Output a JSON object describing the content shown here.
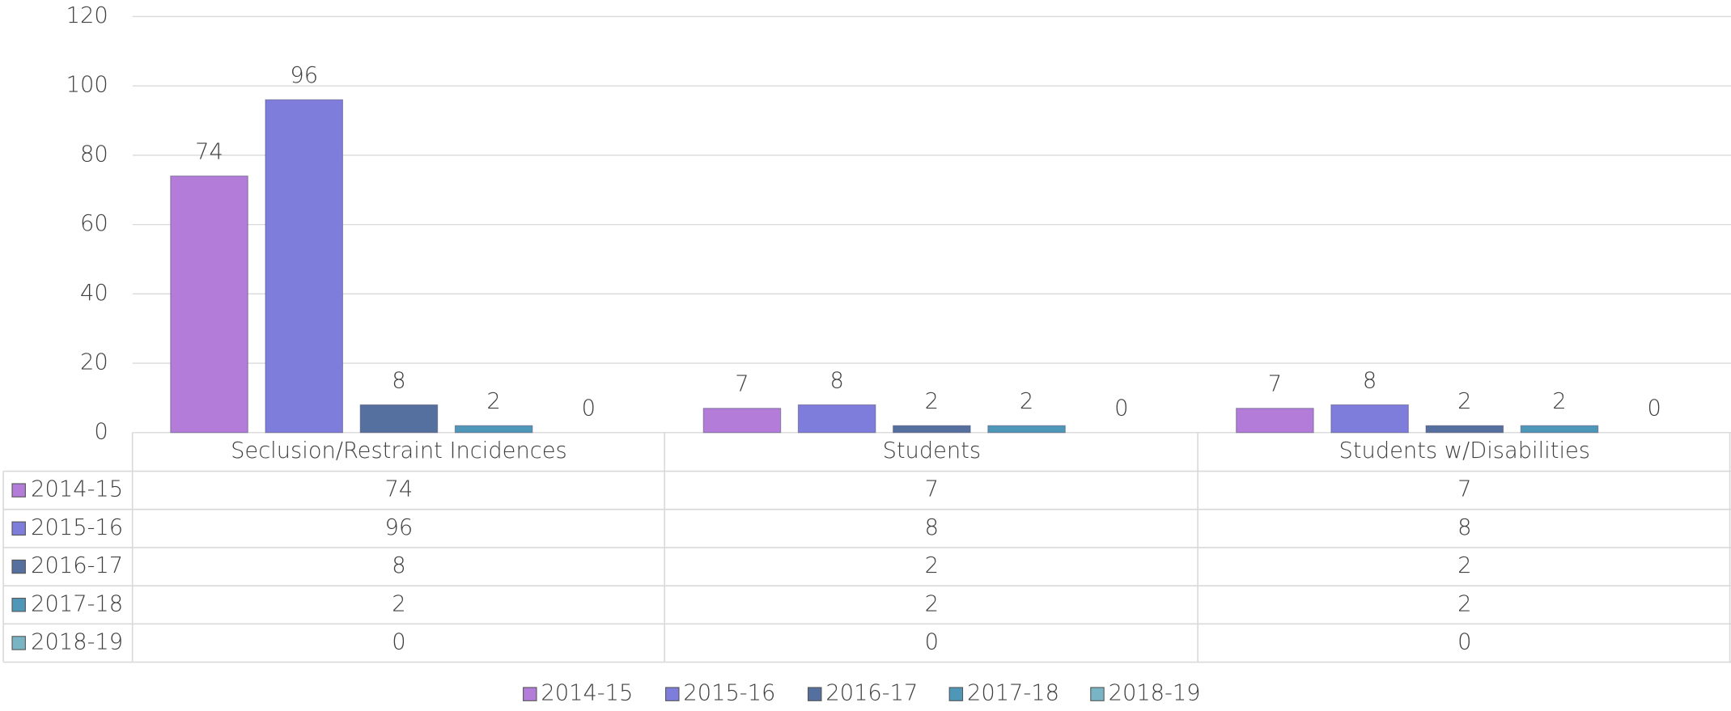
{
  "chart_data": {
    "type": "bar",
    "categories": [
      "Seclusion/Restraint Incidences",
      "Students",
      "Students w/Disabilities"
    ],
    "series": [
      {
        "name": "2014-15",
        "color": "#b27cd8",
        "values": [
          74,
          7,
          7
        ]
      },
      {
        "name": "2015-16",
        "color": "#7f7ddc",
        "values": [
          96,
          8,
          8
        ]
      },
      {
        "name": "2016-17",
        "color": "#55709f",
        "values": [
          8,
          2,
          2
        ]
      },
      {
        "name": "2017-18",
        "color": "#4f97b8",
        "values": [
          2,
          2,
          2
        ]
      },
      {
        "name": "2018-19",
        "color": "#78b4c4",
        "values": [
          0,
          0,
          0
        ]
      }
    ],
    "ylim": [
      0,
      120
    ],
    "yticks": [
      0,
      20,
      40,
      60,
      80,
      100,
      120
    ],
    "grid": true
  }
}
